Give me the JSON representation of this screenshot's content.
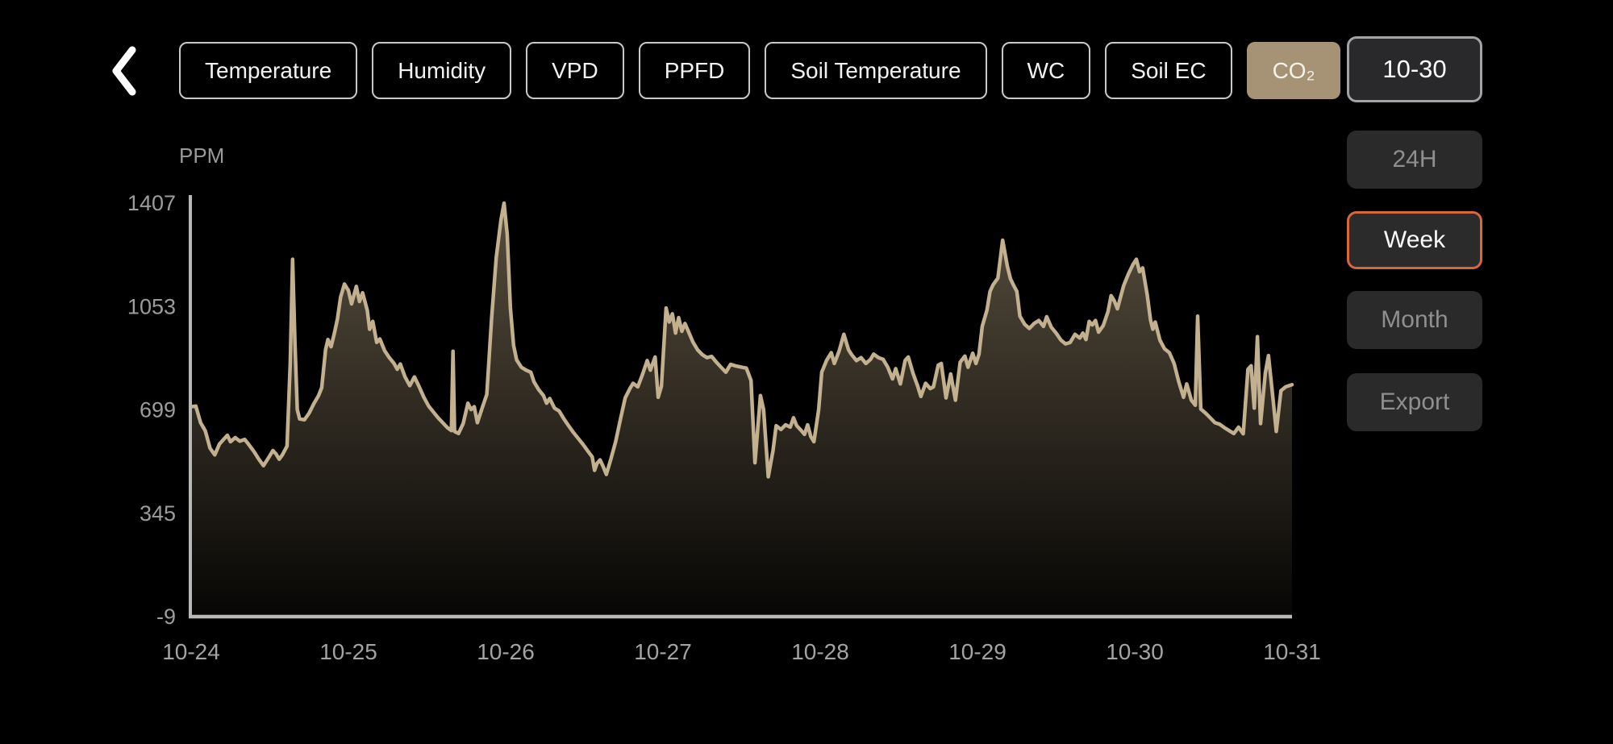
{
  "header": {
    "back_icon": "chevron-left",
    "tabs": [
      {
        "id": "temperature",
        "label": "Temperature",
        "selected": false
      },
      {
        "id": "humidity",
        "label": "Humidity",
        "selected": false
      },
      {
        "id": "vpd",
        "label": "VPD",
        "selected": false
      },
      {
        "id": "ppfd",
        "label": "PPFD",
        "selected": false
      },
      {
        "id": "soil-temperature",
        "label": "Soil Temperature",
        "selected": false
      },
      {
        "id": "wc",
        "label": "WC",
        "selected": false
      },
      {
        "id": "soil-ec",
        "label": "Soil EC",
        "selected": false
      },
      {
        "id": "co2",
        "label": "CO₂",
        "selected": true
      }
    ],
    "date_button": "10-30"
  },
  "controls": {
    "h24": "24H",
    "week": "Week",
    "month": "Month",
    "export": "Export",
    "selected_range": "Week"
  },
  "colors": {
    "background": "#000000",
    "accent_orange": "#d9673a",
    "selected_tab_tan": "#a69376",
    "line_beige": "#c2b08e",
    "fill_beige": "#ae9b7a",
    "axis_gray": "#b8b8b8",
    "tick_gray": "#9c9c9c"
  },
  "chart_data": {
    "type": "area",
    "title": "CO₂ week history",
    "unit_label": "PPM",
    "ylabel": "PPM",
    "xlabel": "",
    "ylim": [
      -9,
      1407
    ],
    "yticks": [
      1407,
      1053,
      699,
      345,
      -9
    ],
    "categories": [
      "10-24",
      "10-25",
      "10-26",
      "10-27",
      "10-28",
      "10-29",
      "10-30",
      "10-31"
    ],
    "x_span_days": 7,
    "grid": false,
    "legend": false,
    "series": [
      {
        "name": "CO₂ (PPM)",
        "points": [
          [
            0.0,
            710
          ],
          [
            0.03,
            712
          ],
          [
            0.06,
            655
          ],
          [
            0.09,
            627
          ],
          [
            0.12,
            568
          ],
          [
            0.15,
            545
          ],
          [
            0.18,
            582
          ],
          [
            0.21,
            600
          ],
          [
            0.23,
            612
          ],
          [
            0.25,
            590
          ],
          [
            0.28,
            604
          ],
          [
            0.31,
            592
          ],
          [
            0.34,
            598
          ],
          [
            0.36,
            585
          ],
          [
            0.4,
            556
          ],
          [
            0.43,
            530
          ],
          [
            0.46,
            508
          ],
          [
            0.5,
            542
          ],
          [
            0.52,
            560
          ],
          [
            0.54,
            548
          ],
          [
            0.56,
            530
          ],
          [
            0.58,
            545
          ],
          [
            0.61,
            575
          ],
          [
            0.63,
            860
          ],
          [
            0.645,
            1215
          ],
          [
            0.66,
            930
          ],
          [
            0.675,
            700
          ],
          [
            0.69,
            668
          ],
          [
            0.72,
            665
          ],
          [
            0.75,
            688
          ],
          [
            0.78,
            720
          ],
          [
            0.81,
            748
          ],
          [
            0.83,
            775
          ],
          [
            0.855,
            905
          ],
          [
            0.87,
            940
          ],
          [
            0.89,
            915
          ],
          [
            0.91,
            960
          ],
          [
            0.93,
            1010
          ],
          [
            0.95,
            1085
          ],
          [
            0.975,
            1130
          ],
          [
            1.0,
            1108
          ],
          [
            1.02,
            1062
          ],
          [
            1.05,
            1122
          ],
          [
            1.07,
            1070
          ],
          [
            1.09,
            1100
          ],
          [
            1.12,
            1040
          ],
          [
            1.135,
            975
          ],
          [
            1.155,
            1002
          ],
          [
            1.18,
            930
          ],
          [
            1.2,
            942
          ],
          [
            1.23,
            902
          ],
          [
            1.26,
            878
          ],
          [
            1.29,
            858
          ],
          [
            1.31,
            838
          ],
          [
            1.33,
            856
          ],
          [
            1.36,
            812
          ],
          [
            1.39,
            782
          ],
          [
            1.42,
            812
          ],
          [
            1.45,
            778
          ],
          [
            1.48,
            742
          ],
          [
            1.51,
            712
          ],
          [
            1.54,
            692
          ],
          [
            1.57,
            672
          ],
          [
            1.6,
            655
          ],
          [
            1.63,
            638
          ],
          [
            1.655,
            628
          ],
          [
            1.665,
            900
          ],
          [
            1.675,
            625
          ],
          [
            1.7,
            618
          ],
          [
            1.73,
            652
          ],
          [
            1.76,
            722
          ],
          [
            1.78,
            700
          ],
          [
            1.8,
            710
          ],
          [
            1.82,
            655
          ],
          [
            1.85,
            705
          ],
          [
            1.88,
            752
          ],
          [
            1.91,
            1010
          ],
          [
            1.94,
            1220
          ],
          [
            1.97,
            1350
          ],
          [
            1.99,
            1407
          ],
          [
            2.01,
            1300
          ],
          [
            2.03,
            1050
          ],
          [
            2.05,
            920
          ],
          [
            2.07,
            870
          ],
          [
            2.1,
            845
          ],
          [
            2.13,
            835
          ],
          [
            2.16,
            828
          ],
          [
            2.18,
            795
          ],
          [
            2.21,
            768
          ],
          [
            2.24,
            748
          ],
          [
            2.26,
            722
          ],
          [
            2.28,
            738
          ],
          [
            2.31,
            705
          ],
          [
            2.34,
            695
          ],
          [
            2.37,
            668
          ],
          [
            2.4,
            645
          ],
          [
            2.43,
            622
          ],
          [
            2.46,
            602
          ],
          [
            2.49,
            582
          ],
          [
            2.52,
            560
          ],
          [
            2.55,
            538
          ],
          [
            2.565,
            492
          ],
          [
            2.58,
            515
          ],
          [
            2.6,
            528
          ],
          [
            2.62,
            505
          ],
          [
            2.64,
            478
          ],
          [
            2.67,
            532
          ],
          [
            2.7,
            592
          ],
          [
            2.73,
            668
          ],
          [
            2.76,
            740
          ],
          [
            2.79,
            772
          ],
          [
            2.81,
            790
          ],
          [
            2.84,
            778
          ],
          [
            2.87,
            820
          ],
          [
            2.9,
            868
          ],
          [
            2.92,
            835
          ],
          [
            2.95,
            880
          ],
          [
            2.97,
            742
          ],
          [
            2.99,
            780
          ],
          [
            3.02,
            1048
          ],
          [
            3.04,
            1000
          ],
          [
            3.06,
            1028
          ],
          [
            3.08,
            962
          ],
          [
            3.1,
            1015
          ],
          [
            3.12,
            968
          ],
          [
            3.14,
            995
          ],
          [
            3.17,
            958
          ],
          [
            3.19,
            932
          ],
          [
            3.22,
            905
          ],
          [
            3.25,
            888
          ],
          [
            3.28,
            878
          ],
          [
            3.31,
            882
          ],
          [
            3.34,
            862
          ],
          [
            3.37,
            845
          ],
          [
            3.4,
            828
          ],
          [
            3.43,
            855
          ],
          [
            3.46,
            850
          ],
          [
            3.5,
            845
          ],
          [
            3.53,
            842
          ],
          [
            3.56,
            800
          ],
          [
            3.585,
            518
          ],
          [
            3.62,
            748
          ],
          [
            3.64,
            700
          ],
          [
            3.67,
            470
          ],
          [
            3.7,
            560
          ],
          [
            3.72,
            645
          ],
          [
            3.75,
            632
          ],
          [
            3.78,
            648
          ],
          [
            3.81,
            640
          ],
          [
            3.83,
            672
          ],
          [
            3.85,
            645
          ],
          [
            3.88,
            628
          ],
          [
            3.9,
            615
          ],
          [
            3.92,
            648
          ],
          [
            3.94,
            608
          ],
          [
            3.96,
            590
          ],
          [
            3.99,
            700
          ],
          [
            4.01,
            828
          ],
          [
            4.04,
            868
          ],
          [
            4.07,
            895
          ],
          [
            4.09,
            858
          ],
          [
            4.12,
            900
          ],
          [
            4.15,
            958
          ],
          [
            4.18,
            905
          ],
          [
            4.2,
            888
          ],
          [
            4.23,
            868
          ],
          [
            4.26,
            878
          ],
          [
            4.29,
            858
          ],
          [
            4.32,
            872
          ],
          [
            4.34,
            890
          ],
          [
            4.37,
            878
          ],
          [
            4.4,
            872
          ],
          [
            4.43,
            845
          ],
          [
            4.46,
            805
          ],
          [
            4.48,
            840
          ],
          [
            4.51,
            788
          ],
          [
            4.54,
            868
          ],
          [
            4.56,
            880
          ],
          [
            4.59,
            825
          ],
          [
            4.62,
            780
          ],
          [
            4.64,
            745
          ],
          [
            4.67,
            790
          ],
          [
            4.7,
            772
          ],
          [
            4.72,
            778
          ],
          [
            4.75,
            852
          ],
          [
            4.77,
            858
          ],
          [
            4.8,
            740
          ],
          [
            4.83,
            822
          ],
          [
            4.86,
            732
          ],
          [
            4.89,
            862
          ],
          [
            4.92,
            883
          ],
          [
            4.94,
            845
          ],
          [
            4.97,
            893
          ],
          [
            4.99,
            858
          ],
          [
            5.01,
            890
          ],
          [
            5.03,
            985
          ],
          [
            5.06,
            1040
          ],
          [
            5.08,
            1105
          ],
          [
            5.1,
            1128
          ],
          [
            5.13,
            1150
          ],
          [
            5.16,
            1280
          ],
          [
            5.19,
            1190
          ],
          [
            5.21,
            1148
          ],
          [
            5.23,
            1125
          ],
          [
            5.25,
            1105
          ],
          [
            5.27,
            1020
          ],
          [
            5.3,
            992
          ],
          [
            5.33,
            978
          ],
          [
            5.36,
            995
          ],
          [
            5.39,
            1005
          ],
          [
            5.42,
            985
          ],
          [
            5.44,
            1018
          ],
          [
            5.47,
            982
          ],
          [
            5.5,
            962
          ],
          [
            5.53,
            938
          ],
          [
            5.56,
            925
          ],
          [
            5.59,
            930
          ],
          [
            5.62,
            958
          ],
          [
            5.65,
            945
          ],
          [
            5.67,
            962
          ],
          [
            5.69,
            940
          ],
          [
            5.71,
            1002
          ],
          [
            5.73,
            990
          ],
          [
            5.75,
            1005
          ],
          [
            5.77,
            965
          ],
          [
            5.8,
            988
          ],
          [
            5.83,
            1035
          ],
          [
            5.85,
            1090
          ],
          [
            5.87,
            1072
          ],
          [
            5.89,
            1045
          ],
          [
            5.93,
            1125
          ],
          [
            5.96,
            1165
          ],
          [
            5.99,
            1198
          ],
          [
            6.01,
            1215
          ],
          [
            6.03,
            1172
          ],
          [
            6.05,
            1185
          ],
          [
            6.08,
            1090
          ],
          [
            6.1,
            1008
          ],
          [
            6.115,
            975
          ],
          [
            6.13,
            1000
          ],
          [
            6.16,
            938
          ],
          [
            6.19,
            908
          ],
          [
            6.22,
            895
          ],
          [
            6.25,
            858
          ],
          [
            6.28,
            795
          ],
          [
            6.31,
            742
          ],
          [
            6.33,
            788
          ],
          [
            6.36,
            732
          ],
          [
            6.385,
            715
          ],
          [
            6.4,
            1020
          ],
          [
            6.42,
            702
          ],
          [
            6.45,
            688
          ],
          [
            6.48,
            672
          ],
          [
            6.51,
            655
          ],
          [
            6.54,
            650
          ],
          [
            6.57,
            638
          ],
          [
            6.6,
            628
          ],
          [
            6.63,
            618
          ],
          [
            6.66,
            640
          ],
          [
            6.69,
            617
          ],
          [
            6.72,
            838
          ],
          [
            6.74,
            850
          ],
          [
            6.76,
            705
          ],
          [
            6.78,
            950
          ],
          [
            6.8,
            652
          ],
          [
            6.83,
            825
          ],
          [
            6.85,
            885
          ],
          [
            6.88,
            732
          ],
          [
            6.9,
            625
          ],
          [
            6.93,
            765
          ],
          [
            6.96,
            778
          ],
          [
            7.0,
            785
          ]
        ]
      }
    ]
  }
}
